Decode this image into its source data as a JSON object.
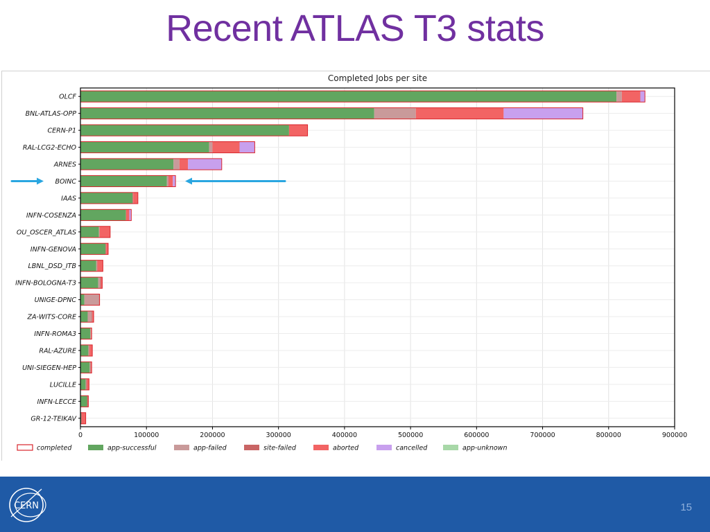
{
  "slide": {
    "title": "Recent ATLAS T3 stats",
    "page_number": "15",
    "logo_text": "CERN"
  },
  "colors": {
    "title": "#7030a0",
    "footer": "#1f5aa6",
    "completed_outline": "#d9242b",
    "app-successful": "#62a660",
    "app-failed": "#c99a9a",
    "site-failed": "#c96565",
    "aborted": "#f26464",
    "cancelled": "#c8a0ee",
    "app-unknown": "#a8d8a8",
    "arrow": "#2aa6e0"
  },
  "chart_data": {
    "type": "bar",
    "orientation": "horizontal",
    "stacked": true,
    "title": "Completed Jobs per site",
    "xlim": [
      0,
      900000
    ],
    "xticks": [
      0,
      100000,
      200000,
      300000,
      400000,
      500000,
      600000,
      700000,
      800000,
      900000
    ],
    "grid": true,
    "legend_position": "bottom",
    "categories": [
      "OLCF",
      "BNL-ATLAS-OPP",
      "CERN-P1",
      "RAL-LCG2-ECHO",
      "ARNES",
      "BOINC",
      "IAAS",
      "INFN-COSENZA",
      "OU_OSCER_ATLAS",
      "INFN-GENOVA",
      "LBNL_DSD_ITB",
      "INFN-BOLOGNA-T3",
      "UNIGE-DPNC",
      "ZA-WITS-CORE",
      "INFN-ROMA3",
      "RAL-AZURE",
      "UNI-SIEGEN-HEP",
      "LUCILLE",
      "INFN-LECCE",
      "GR-12-TEIKAV"
    ],
    "series": [
      {
        "name": "app-successful",
        "values": [
          812000,
          445000,
          316000,
          195000,
          141000,
          131000,
          79000,
          69000,
          28000,
          38000,
          24000,
          27000,
          6000,
          11000,
          15000,
          12000,
          14000,
          8000,
          10000,
          1000
        ]
      },
      {
        "name": "app-failed",
        "values": [
          8000,
          63000,
          0,
          5000,
          9000,
          2000,
          0,
          0,
          1000,
          0,
          1000,
          3000,
          22000,
          6000,
          1000,
          1000,
          1000,
          1000,
          0,
          0
        ]
      },
      {
        "name": "site-failed",
        "values": [
          0,
          0,
          0,
          0,
          0,
          1000,
          1000,
          0,
          0,
          1000,
          1000,
          1000,
          1000,
          1000,
          0,
          1000,
          1000,
          1000,
          1000,
          1000
        ]
      },
      {
        "name": "aborted",
        "values": [
          28000,
          133000,
          28000,
          41000,
          13000,
          6000,
          7000,
          5000,
          16000,
          3000,
          8000,
          2000,
          0,
          2000,
          1000,
          4000,
          1000,
          3000,
          1000,
          6000
        ]
      },
      {
        "name": "cancelled",
        "values": [
          7000,
          120000,
          0,
          23000,
          51000,
          4000,
          0,
          3000,
          0,
          0,
          0,
          0,
          0,
          0,
          0,
          0,
          0,
          0,
          0,
          0
        ]
      },
      {
        "name": "app-unknown",
        "values": [
          0,
          0,
          0,
          0,
          0,
          0,
          0,
          0,
          0,
          0,
          0,
          0,
          0,
          0,
          0,
          0,
          0,
          0,
          0,
          0
        ]
      }
    ],
    "legend": [
      "completed",
      "app-successful",
      "app-failed",
      "site-failed",
      "aborted",
      "cancelled",
      "app-unknown"
    ],
    "annotations": [
      {
        "type": "arrow",
        "target": "BOINC",
        "direction": "right"
      },
      {
        "type": "arrow",
        "target": "BOINC",
        "direction": "left"
      }
    ]
  }
}
